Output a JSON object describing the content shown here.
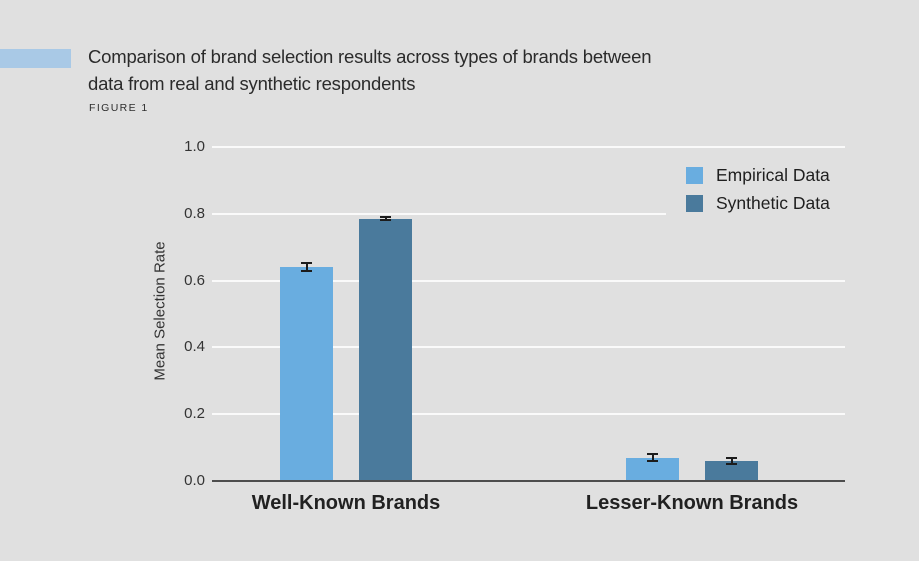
{
  "header": {
    "title_line1": "Comparison of brand selection results across types of brands between",
    "title_line2": "data from real and synthetic respondents",
    "figure_label": "FIGURE 1",
    "accent_color": "#a9c9e6"
  },
  "chart_data": {
    "type": "bar",
    "title": "Comparison of brand selection results across types of brands between data from real and synthetic respondents",
    "figure_label": "FIGURE 1",
    "categories": [
      "Well-Known Brands",
      "Lesser-Known Brands"
    ],
    "series": [
      {
        "name": "Empirical Data",
        "color": "#69ade0",
        "values": [
          0.64,
          0.07
        ],
        "errors": [
          0.015,
          0.013
        ]
      },
      {
        "name": "Synthetic Data",
        "color": "#4a7a9c",
        "values": [
          0.785,
          0.06
        ],
        "errors": [
          0.007,
          0.011
        ]
      }
    ],
    "ylabel": "Mean Selection Rate",
    "ylim": [
      0,
      1.0
    ],
    "yticks": [
      0.0,
      0.2,
      0.4,
      0.6,
      0.8,
      1.0
    ],
    "ytick_labels": [
      "0.0",
      "0.2",
      "0.4",
      "0.6",
      "0.8",
      "1.0"
    ],
    "grid": true,
    "error_bars": true,
    "legend_position": "upper right",
    "background_color": "#e0e0e0",
    "gridline_color": "#fafafa",
    "axis_line_color": "#4d4d4d",
    "error_bar_color": "#1c1c1c"
  }
}
